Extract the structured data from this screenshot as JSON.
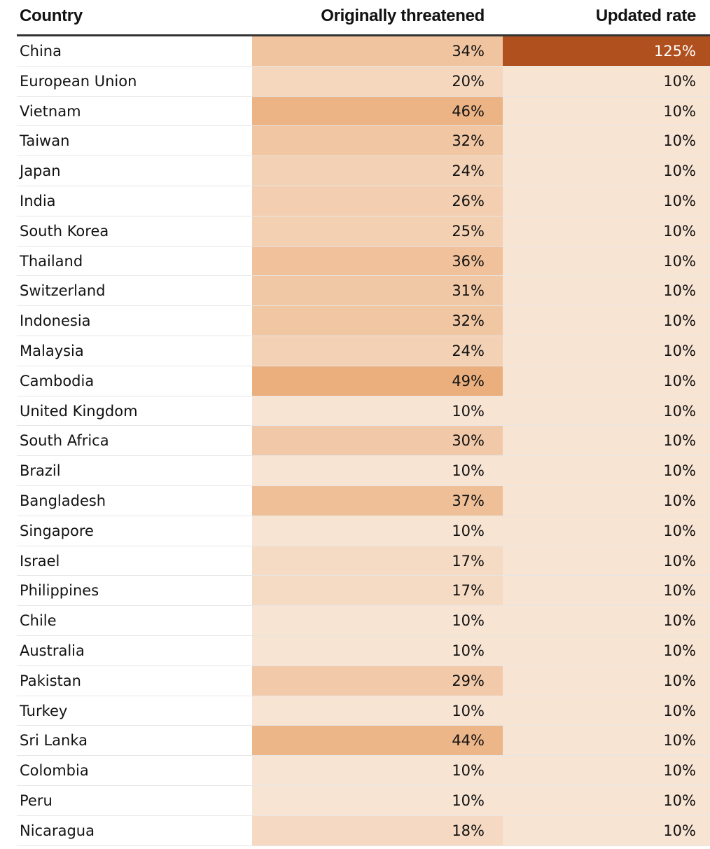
{
  "chart_data": {
    "type": "table",
    "columns": [
      "Country",
      "Originally threatened",
      "Updated rate"
    ],
    "rows": [
      {
        "country": "China",
        "original": 34,
        "updated": 125
      },
      {
        "country": "European Union",
        "original": 20,
        "updated": 10
      },
      {
        "country": "Vietnam",
        "original": 46,
        "updated": 10
      },
      {
        "country": "Taiwan",
        "original": 32,
        "updated": 10
      },
      {
        "country": "Japan",
        "original": 24,
        "updated": 10
      },
      {
        "country": "India",
        "original": 26,
        "updated": 10
      },
      {
        "country": "South Korea",
        "original": 25,
        "updated": 10
      },
      {
        "country": "Thailand",
        "original": 36,
        "updated": 10
      },
      {
        "country": "Switzerland",
        "original": 31,
        "updated": 10
      },
      {
        "country": "Indonesia",
        "original": 32,
        "updated": 10
      },
      {
        "country": "Malaysia",
        "original": 24,
        "updated": 10
      },
      {
        "country": "Cambodia",
        "original": 49,
        "updated": 10
      },
      {
        "country": "United Kingdom",
        "original": 10,
        "updated": 10
      },
      {
        "country": "South Africa",
        "original": 30,
        "updated": 10
      },
      {
        "country": "Brazil",
        "original": 10,
        "updated": 10
      },
      {
        "country": "Bangladesh",
        "original": 37,
        "updated": 10
      },
      {
        "country": "Singapore",
        "original": 10,
        "updated": 10
      },
      {
        "country": "Israel",
        "original": 17,
        "updated": 10
      },
      {
        "country": "Philippines",
        "original": 17,
        "updated": 10
      },
      {
        "country": "Chile",
        "original": 10,
        "updated": 10
      },
      {
        "country": "Australia",
        "original": 10,
        "updated": 10
      },
      {
        "country": "Pakistan",
        "original": 29,
        "updated": 10
      },
      {
        "country": "Turkey",
        "original": 10,
        "updated": 10
      },
      {
        "country": "Sri Lanka",
        "original": 44,
        "updated": 10
      },
      {
        "country": "Colombia",
        "original": 10,
        "updated": 10
      },
      {
        "country": "Peru",
        "original": 10,
        "updated": 10
      },
      {
        "country": "Nicaragua",
        "original": 18,
        "updated": 10
      }
    ],
    "value_unit": "%",
    "color_scale": {
      "light": "#f8e4d3",
      "mid": "#ebae7c",
      "dark": "#b0501f"
    }
  }
}
